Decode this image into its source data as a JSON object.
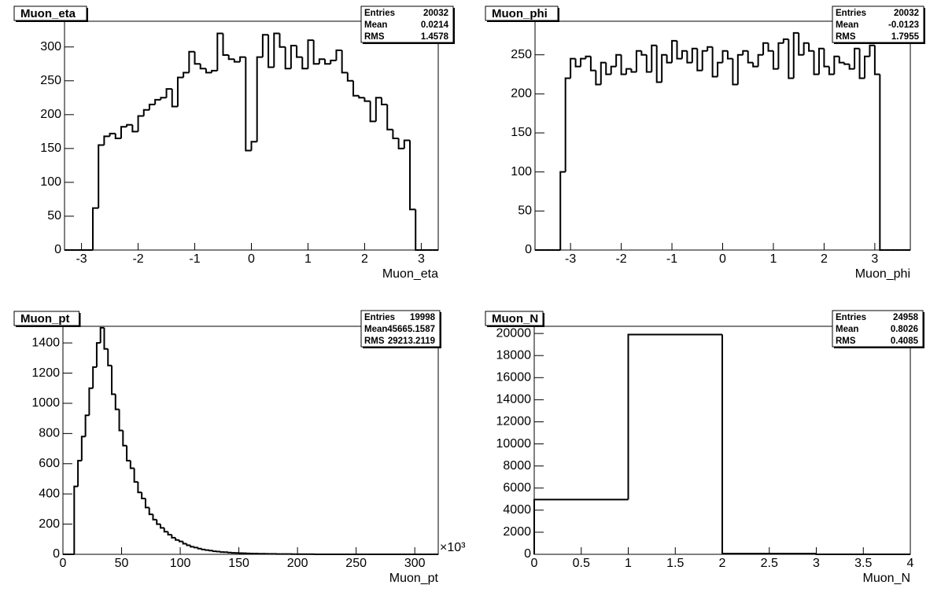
{
  "chart_data": [
    {
      "type": "histogram",
      "title": "Muon_eta",
      "xlabel": "Muon_eta",
      "color": "#000000",
      "bins": [
        -3.3,
        -3.2,
        -3.1,
        -3.0,
        -2.9,
        -2.8,
        -2.7,
        -2.6,
        -2.5,
        -2.4,
        -2.3,
        -2.2,
        -2.1,
        -2.0,
        -1.9,
        -1.8,
        -1.7,
        -1.6,
        -1.5,
        -1.4,
        -1.3,
        -1.2,
        -1.1,
        -1.0,
        -0.9,
        -0.8,
        -0.7,
        -0.6,
        -0.5,
        -0.4,
        -0.3,
        -0.2,
        -0.1,
        0,
        0.1,
        0.2,
        0.3,
        0.4,
        0.5,
        0.6,
        0.7,
        0.8,
        0.9,
        1.0,
        1.1,
        1.2,
        1.3,
        1.4,
        1.5,
        1.6,
        1.7,
        1.8,
        1.9,
        2.0,
        2.1,
        2.2,
        2.3,
        2.4,
        2.5,
        2.6,
        2.7,
        2.8,
        2.9,
        3.0,
        3.1,
        3.2,
        3.3
      ],
      "values": [
        0,
        0,
        0,
        0,
        0,
        62,
        155,
        168,
        172,
        165,
        182,
        185,
        175,
        198,
        207,
        215,
        222,
        225,
        238,
        212,
        255,
        262,
        293,
        275,
        268,
        262,
        265,
        320,
        288,
        282,
        278,
        285,
        147,
        160,
        285,
        318,
        270,
        320,
        300,
        268,
        302,
        285,
        268,
        310,
        275,
        282,
        275,
        280,
        295,
        262,
        250,
        228,
        225,
        220,
        190,
        225,
        215,
        178,
        165,
        150,
        162,
        60,
        0,
        0,
        0,
        0
      ],
      "xlim": [
        -3.3,
        3.3
      ],
      "ylim": [
        0,
        338
      ],
      "xticks": [
        -3,
        -2,
        -1,
        0,
        1,
        2,
        3
      ],
      "yticks": [
        0,
        50,
        100,
        150,
        200,
        250,
        300
      ],
      "stats": [
        {
          "label": "Entries",
          "value": 20032
        },
        {
          "label": "Mean",
          "value": 0.0214
        },
        {
          "label": "RMS",
          "value": 1.4578
        }
      ]
    },
    {
      "type": "histogram",
      "title": "Muon_phi",
      "xlabel": "Muon_phi",
      "color": "#000000",
      "bins": [
        -3.7,
        -3.6,
        -3.5,
        -3.4,
        -3.3,
        -3.2,
        -3.1,
        -3.0,
        -2.9,
        -2.8,
        -2.7,
        -2.6,
        -2.5,
        -2.4,
        -2.3,
        -2.2,
        -2.1,
        -2.0,
        -1.9,
        -1.8,
        -1.7,
        -1.6,
        -1.5,
        -1.4,
        -1.3,
        -1.2,
        -1.1,
        -1.0,
        -0.9,
        -0.8,
        -0.7,
        -0.6,
        -0.5,
        -0.4,
        -0.3,
        -0.2,
        -0.1,
        0,
        0.1,
        0.2,
        0.3,
        0.4,
        0.5,
        0.6,
        0.7,
        0.8,
        0.9,
        1.0,
        1.1,
        1.2,
        1.3,
        1.4,
        1.5,
        1.6,
        1.7,
        1.8,
        1.9,
        2.0,
        2.1,
        2.2,
        2.3,
        2.4,
        2.5,
        2.6,
        2.7,
        2.8,
        2.9,
        3.0,
        3.1,
        3.2,
        3.3,
        3.4,
        3.5,
        3.6,
        3.7
      ],
      "values": [
        0,
        0,
        0,
        0,
        0,
        100,
        220,
        245,
        235,
        245,
        248,
        230,
        212,
        240,
        225,
        235,
        250,
        225,
        232,
        228,
        255,
        250,
        228,
        262,
        215,
        250,
        240,
        268,
        245,
        255,
        240,
        258,
        230,
        255,
        260,
        222,
        240,
        255,
        245,
        212,
        250,
        255,
        240,
        235,
        250,
        265,
        255,
        232,
        265,
        270,
        220,
        278,
        250,
        265,
        255,
        225,
        258,
        235,
        225,
        248,
        240,
        238,
        232,
        258,
        220,
        248,
        262,
        225,
        0,
        0,
        0,
        0,
        0,
        0
      ],
      "xlim": [
        -3.7,
        3.7
      ],
      "ylim": [
        0,
        293
      ],
      "xticks": [
        -3,
        -2,
        -1,
        0,
        1,
        2,
        3
      ],
      "yticks": [
        0,
        50,
        100,
        150,
        200,
        250
      ],
      "stats": [
        {
          "label": "Entries",
          "value": 20032
        },
        {
          "label": "Mean",
          "value": -0.0123
        },
        {
          "label": "RMS",
          "value": 1.7955
        }
      ]
    },
    {
      "type": "histogram",
      "title": "Muon_pt",
      "xlabel": "Muon_pt",
      "x_exponent": "×10³",
      "color": "#000000",
      "bins": [
        0,
        3.2,
        6.4,
        9.6,
        12.8,
        16,
        19.2,
        22.4,
        25.6,
        28.8,
        32,
        35.2,
        38.4,
        41.6,
        44.8,
        48,
        51.2,
        54.4,
        57.6,
        60.8,
        64,
        67.2,
        70.4,
        73.6,
        76.8,
        80,
        83.2,
        86.4,
        89.6,
        92.8,
        96,
        99.2,
        102.4,
        105.6,
        108.8,
        112,
        115.2,
        118.4,
        121.6,
        124.8,
        128,
        131.2,
        134.4,
        137.6,
        140.8,
        144,
        147.2,
        150.4,
        153.6,
        156.8,
        160,
        163.2,
        166.4,
        169.6,
        172.8,
        176,
        179.2,
        182.4,
        185.6,
        188.8,
        192,
        195.2,
        198.4,
        201.6,
        204.8,
        208,
        211.2,
        214.4,
        217.6,
        220.8,
        224,
        227.2,
        230.4,
        233.6,
        236.8,
        240,
        243.2,
        246.4,
        249.6,
        252.8,
        256,
        259.2,
        262.4,
        265.6,
        268.8,
        272,
        275.2,
        278.4,
        281.6,
        284.8,
        288,
        291.2,
        294.4,
        297.6,
        300.8,
        304,
        307.2,
        310.4,
        313.6,
        316.8,
        320
      ],
      "values": [
        0,
        0,
        0,
        450,
        620,
        780,
        920,
        1100,
        1240,
        1400,
        1500,
        1360,
        1250,
        1060,
        960,
        820,
        720,
        620,
        570,
        480,
        410,
        370,
        310,
        265,
        230,
        200,
        175,
        150,
        130,
        110,
        95,
        85,
        70,
        60,
        50,
        45,
        38,
        32,
        28,
        25,
        20,
        18,
        15,
        14,
        12,
        10,
        9,
        8,
        7,
        6,
        5,
        5,
        4,
        4,
        3,
        3,
        3,
        2,
        2,
        2,
        2,
        1,
        1,
        1,
        1,
        1,
        1,
        0,
        0,
        0,
        0,
        0,
        0,
        0,
        0,
        0,
        0,
        0,
        0,
        0,
        0,
        0,
        0,
        0,
        0,
        0,
        0,
        0,
        0,
        0,
        0,
        0,
        0,
        0,
        0,
        0,
        0,
        0,
        0,
        0
      ],
      "xlim": [
        0,
        320
      ],
      "ylim": [
        0,
        1510
      ],
      "xticks": [
        0,
        50,
        100,
        150,
        200,
        250,
        300
      ],
      "yticks": [
        0,
        200,
        400,
        600,
        800,
        1000,
        1200,
        1400
      ],
      "stats": [
        {
          "label": "Entries",
          "value": 19998
        },
        {
          "label": "Mean",
          "value": 45665.1587
        },
        {
          "label": "RMS",
          "value": 29213.2119
        }
      ]
    },
    {
      "type": "histogram",
      "title": "Muon_N",
      "xlabel": "Muon_N",
      "color": "#000000",
      "bins": [
        0,
        1,
        2,
        3,
        4
      ],
      "values": [
        4960,
        19900,
        60,
        0
      ],
      "xlim": [
        0,
        4
      ],
      "ylim": [
        0,
        20650
      ],
      "xticks": [
        0,
        0.5,
        1,
        1.5,
        2,
        2.5,
        3,
        3.5,
        4
      ],
      "yticks": [
        0,
        2000,
        4000,
        6000,
        8000,
        10000,
        12000,
        14000,
        16000,
        18000,
        20000
      ],
      "stats": [
        {
          "label": "Entries",
          "value": 24958
        },
        {
          "label": "Mean",
          "value": 0.8026
        },
        {
          "label": "RMS",
          "value": 0.4085
        }
      ]
    }
  ]
}
